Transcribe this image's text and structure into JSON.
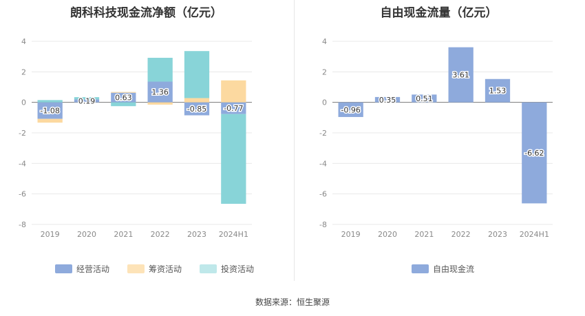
{
  "source_label": "数据来源：恒生聚源",
  "chart_data": [
    {
      "type": "bar",
      "stacked": true,
      "title": "朗科科技现金流净额（亿元）",
      "categories": [
        "2019",
        "2020",
        "2021",
        "2022",
        "2023",
        "2024H1"
      ],
      "ylim": [
        -8,
        4
      ],
      "yticks": [
        4,
        2,
        0,
        -2,
        -4,
        -6,
        -8
      ],
      "grid": true,
      "legend": "bottom",
      "series": [
        {
          "name": "经营活动",
          "color": "#8eaadc",
          "values": [
            -1.08,
            0.19,
            0.63,
            1.36,
            -0.85,
            -0.77
          ],
          "data_labels": [
            "-1.08",
            "0.19",
            "0.63",
            "1.36",
            "-0.85",
            "-0.77"
          ]
        },
        {
          "name": "筹资活动",
          "color": "#fcd9a0",
          "values": [
            -0.25,
            0.0,
            0.05,
            -0.15,
            0.28,
            1.44
          ]
        },
        {
          "name": "投资活动",
          "color": "#88d4d8",
          "values": [
            0.15,
            0.15,
            -0.25,
            1.56,
            3.08,
            -5.88
          ]
        }
      ]
    },
    {
      "type": "bar",
      "title": "自由现金流量（亿元）",
      "categories": [
        "2019",
        "2020",
        "2021",
        "2022",
        "2023",
        "2024H1"
      ],
      "ylim": [
        -8,
        4
      ],
      "yticks": [
        4,
        2,
        0,
        -2,
        -4,
        -6,
        -8
      ],
      "grid": true,
      "legend": "bottom",
      "series": [
        {
          "name": "自由现金流",
          "color": "#8eaadc",
          "values": [
            -0.96,
            0.35,
            0.51,
            3.61,
            1.53,
            -6.62
          ],
          "data_labels": [
            "-0.96",
            "0.35",
            "0.51",
            "3.61",
            "1.53",
            "-6.62"
          ]
        }
      ]
    }
  ]
}
